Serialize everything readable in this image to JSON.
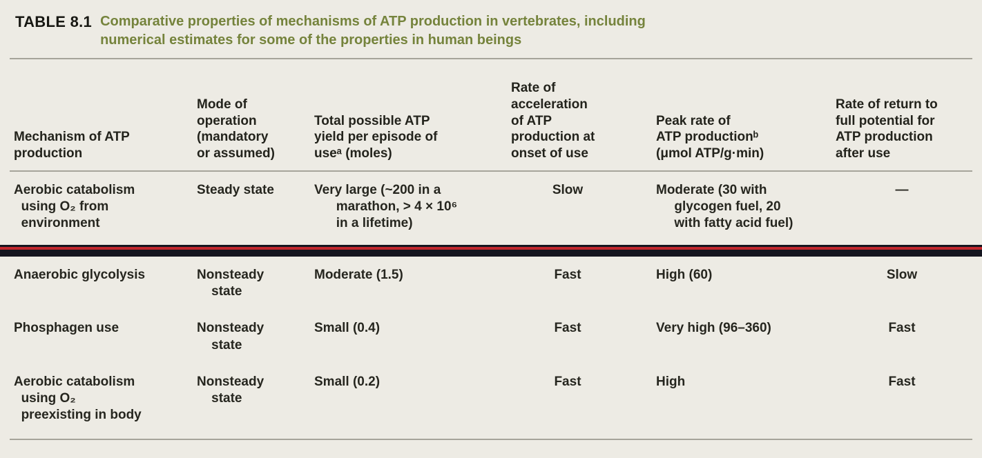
{
  "table": {
    "label": "TABLE 8.1",
    "title": "Comparative properties of mechanisms of ATP production in vertebrates, including\nnumerical estimates for some of the properties in human beings",
    "columns": [
      "Mechanism of ATP\nproduction",
      "Mode of\noperation\n(mandatory\nor assumed)",
      "Total possible ATP\nyield per episode of\nuseᵃ (moles)",
      "Rate of\nacceleration\nof ATP\nproduction at\nonset of use",
      "Peak rate of\nATP productionᵇ\n(μmol ATP/g·min)",
      "Rate of return to\nfull potential for\nATP production\nafter use"
    ],
    "rows": [
      {
        "mechanism": "Aerobic catabolism\n  using O₂ from\n  environment",
        "mode": "Steady state",
        "yield": "Very large (~200 in a\n      marathon, > 4 × 10⁶\n      in a lifetime)",
        "acceleration": "Slow",
        "peak": "Moderate (30 with\n     glycogen fuel, 20\n     with fatty acid fuel)",
        "return": "—"
      },
      {
        "mechanism": "Anaerobic glycolysis",
        "mode": "Nonsteady\n    state",
        "yield": "Moderate (1.5)",
        "acceleration": "Fast",
        "peak": "High (60)",
        "return": "Slow"
      },
      {
        "mechanism": "Phosphagen use",
        "mode": "Nonsteady\n    state",
        "yield": "Small (0.4)",
        "acceleration": "Fast",
        "peak": "Very high (96–360)",
        "return": "Fast"
      },
      {
        "mechanism": "Aerobic catabolism\n  using O₂\n  preexisting in body",
        "mode": "Nonsteady\n    state",
        "yield": "Small (0.2)",
        "acceleration": "Fast",
        "peak": "High",
        "return": "Fast"
      }
    ],
    "colors": {
      "title_green": "#75833c",
      "page_background": "#edebe4",
      "text": "#26261f",
      "rule_gray": "#a6a49a",
      "band_dark": "#15151f",
      "band_red": "#c1272d"
    }
  }
}
